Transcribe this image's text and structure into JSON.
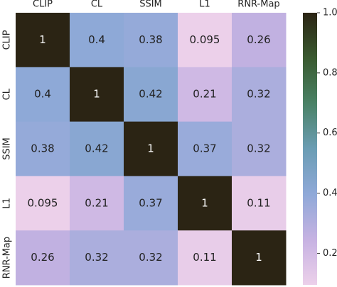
{
  "chart_data": {
    "type": "heatmap",
    "categories": [
      "CLIP",
      "CL",
      "SSIM",
      "L1",
      "RNR-Map"
    ],
    "values": [
      [
        1,
        0.4,
        0.38,
        0.095,
        0.26
      ],
      [
        0.4,
        1,
        0.42,
        0.21,
        0.32
      ],
      [
        0.38,
        0.42,
        1,
        0.37,
        0.32
      ],
      [
        0.095,
        0.21,
        0.37,
        1,
        0.11
      ],
      [
        0.26,
        0.32,
        0.32,
        0.11,
        1
      ]
    ],
    "colormap": [
      "#ecd0ea",
      "#c6b2e2",
      "#8fa9d8",
      "#6b9db4",
      "#4a8266",
      "#3a5a30",
      "#2b2414"
    ],
    "clim": [
      0.095,
      1
    ],
    "cticks": [
      0.2,
      0.4,
      0.6,
      0.8,
      {
        "value": 1,
        "label": "1.0"
      }
    ]
  }
}
